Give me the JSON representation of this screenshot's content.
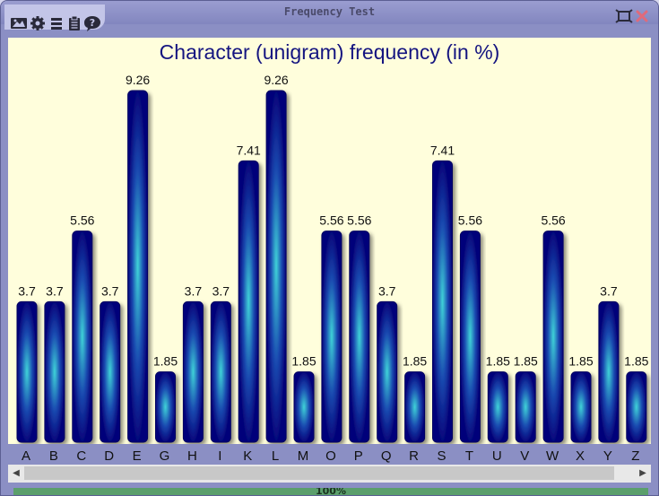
{
  "window": {
    "title": "Frequency Test"
  },
  "toolbar": {
    "icons": [
      "image-icon",
      "gear-icon",
      "menu-icon",
      "clipboard-icon",
      "help-icon"
    ]
  },
  "window_controls": {
    "icons": [
      "minimize-icon",
      "maximize-icon",
      "close-icon"
    ]
  },
  "chart_data": {
    "type": "bar",
    "title": "Character (unigram) frequency (in %)",
    "categories": [
      "A",
      "B",
      "C",
      "D",
      "E",
      "G",
      "H",
      "I",
      "K",
      "L",
      "M",
      "O",
      "P",
      "Q",
      "R",
      "S",
      "T",
      "U",
      "V",
      "W",
      "X",
      "Y",
      "Z"
    ],
    "values": [
      3.7,
      3.7,
      5.56,
      3.7,
      9.26,
      1.85,
      3.7,
      3.7,
      7.41,
      9.26,
      1.85,
      5.56,
      5.56,
      3.7,
      1.85,
      7.41,
      5.56,
      1.85,
      1.85,
      5.56,
      1.85,
      3.7,
      1.85
    ],
    "labels": [
      "3.7",
      "3.7",
      "5.56",
      "3.7",
      "9.26",
      "1.85",
      "3.7",
      "3.7",
      "7.41",
      "9.26",
      "1.85",
      "5.56",
      "5.56",
      "3.7",
      "1.85",
      "7.41",
      "5.56",
      "1.85",
      "1.85",
      "5.56",
      "1.85",
      "3.7",
      "1.85"
    ],
    "ylim": [
      0,
      9.26
    ],
    "grid": false,
    "colors": {
      "bar_dark": "#05057a",
      "bar_light": "#3fd3d8",
      "bar_edge": "#000060",
      "title": "#141480",
      "background": "#fffedc"
    }
  },
  "progress": {
    "value": 1.0,
    "label": "100%"
  }
}
